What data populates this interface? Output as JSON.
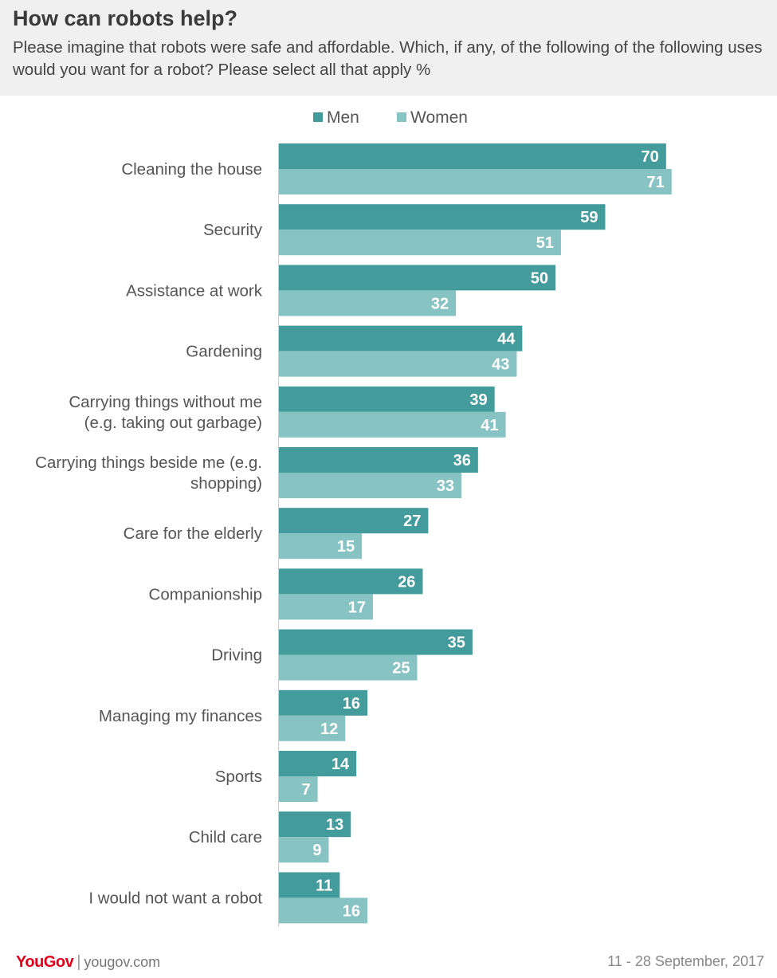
{
  "header": {
    "title": "How can robots help?",
    "subtitle": "Please imagine that robots were safe and affordable. Which, if any, of the following of the following uses would you want for a robot? Please select all that apply %"
  },
  "footer": {
    "brand": "YouGov",
    "separator": "|",
    "site": "yougov.com",
    "date": "11 - 28 September, 2017"
  },
  "colors": {
    "men": "#449b9b",
    "women": "#88c3c3",
    "header_bg": "#f0f0f0",
    "brand": "#e3001b"
  },
  "chart_data": {
    "type": "bar",
    "orientation": "horizontal",
    "title": "How can robots help?",
    "categories": [
      [
        "Cleaning the house"
      ],
      [
        "Security"
      ],
      [
        "Assistance at work"
      ],
      [
        "Gardening"
      ],
      [
        "Carrying things without me",
        "(e.g. taking out garbage)"
      ],
      [
        "Carrying things beside me (e.g.",
        "shopping)"
      ],
      [
        "Care for the elderly"
      ],
      [
        "Companionship"
      ],
      [
        "Driving"
      ],
      [
        "Managing my finances"
      ],
      [
        "Sports"
      ],
      [
        "Child care"
      ],
      [
        "I would not want a robot"
      ]
    ],
    "series": [
      {
        "name": "Men",
        "color": "#449b9b",
        "values": [
          70,
          59,
          50,
          44,
          39,
          36,
          27,
          26,
          35,
          16,
          14,
          13,
          11
        ]
      },
      {
        "name": "Women",
        "color": "#88c3c3",
        "values": [
          71,
          51,
          32,
          43,
          41,
          33,
          15,
          17,
          25,
          12,
          7,
          9,
          16
        ]
      }
    ],
    "legend_position": "top",
    "data_labels": true,
    "grid": false,
    "xlim": [
      0,
      90
    ]
  }
}
